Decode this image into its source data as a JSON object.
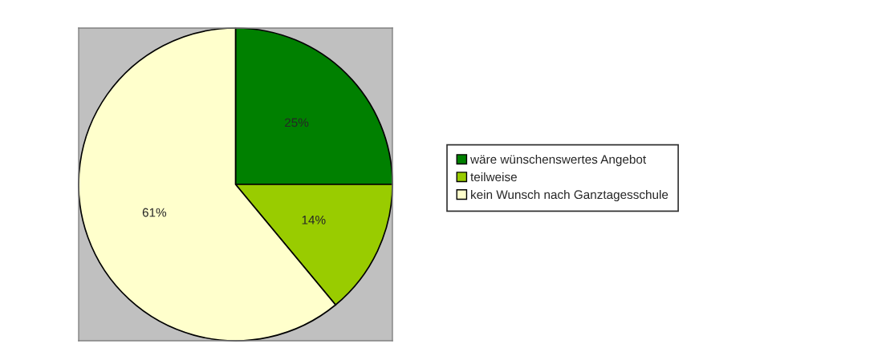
{
  "chart_data": {
    "type": "pie",
    "categories": [
      "wäre wünschenswertes Angebot",
      "teilweise",
      "kein Wunsch nach Ganztagesschule"
    ],
    "values": [
      25,
      14,
      61
    ],
    "value_labels": [
      "25%",
      "14%",
      "61%"
    ],
    "colors": [
      "#008000",
      "#99cc00",
      "#ffffcc"
    ],
    "legend": "right"
  }
}
